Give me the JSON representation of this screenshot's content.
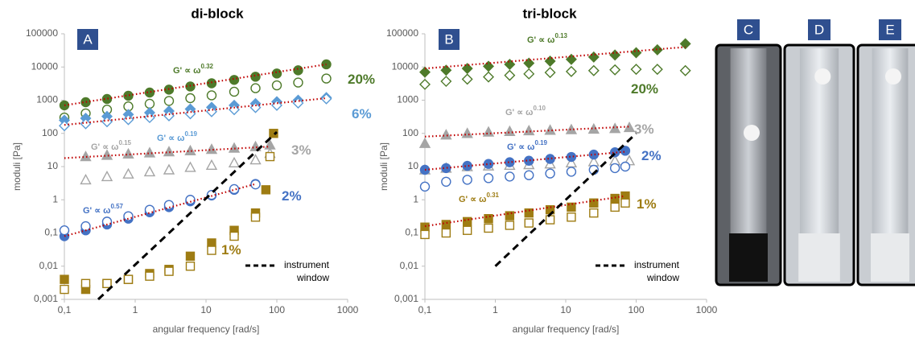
{
  "chart_data": [
    {
      "type": "scatter",
      "panel": "A",
      "title": "di-block",
      "xlabel": "angular frequency [rad/s]",
      "ylabel": "moduli [Pa]",
      "xscale": "log",
      "yscale": "log",
      "grid": false,
      "xlim": [
        0.1,
        1000
      ],
      "ylim": [
        0.001,
        100000
      ],
      "xticks": [
        {
          "value": 0.1,
          "label": "0,1"
        },
        1,
        10,
        100,
        1000
      ],
      "yticks": [
        {
          "value": 0.001,
          "label": "0,001"
        },
        {
          "value": 0.01,
          "label": "0,01"
        },
        {
          "value": 0.1,
          "label": "0,1"
        },
        1,
        10,
        100,
        1000,
        10000,
        100000
      ],
      "series": [
        {
          "color": "#4e7a2a",
          "marker": "circle",
          "filled": true,
          "x": [
            0.1,
            0.2,
            0.4,
            0.8,
            1.6,
            3,
            6,
            12,
            25,
            50,
            100,
            200,
            500
          ],
          "values": [
            700,
            870,
            1090,
            1360,
            1700,
            2080,
            2590,
            3230,
            4090,
            5100,
            6370,
            7940,
            12000
          ]
        },
        {
          "color": "#4e7a2a",
          "marker": "circle",
          "filled": false,
          "x": [
            0.1,
            0.2,
            0.4,
            0.8,
            1.6,
            3,
            6,
            12,
            25,
            50,
            100,
            200,
            500
          ],
          "values": [
            300,
            400,
            520,
            650,
            780,
            950,
            1150,
            1400,
            1800,
            2300,
            2800,
            3400,
            4500
          ]
        },
        {
          "color": "#5b9bd5",
          "marker": "diamond",
          "filled": true,
          "x": [
            0.1,
            0.2,
            0.4,
            0.8,
            1.6,
            3,
            6,
            12,
            25,
            50,
            100,
            200,
            500
          ],
          "values": [
            250,
            285,
            325,
            370,
            420,
            470,
            540,
            610,
            700,
            790,
            900,
            1000,
            1200
          ]
        },
        {
          "color": "#5b9bd5",
          "marker": "diamond",
          "filled": false,
          "x": [
            0.1,
            0.2,
            0.4,
            0.8,
            1.6,
            3,
            6,
            12,
            25,
            50,
            100,
            200,
            500
          ],
          "values": [
            170,
            195,
            225,
            260,
            300,
            340,
            390,
            450,
            520,
            600,
            700,
            820,
            1100
          ]
        },
        {
          "color": "#a5a5a5",
          "marker": "triangle",
          "filled": true,
          "x": [
            0.2,
            0.4,
            0.8,
            1.6,
            3,
            6,
            12,
            25,
            50,
            80
          ],
          "values": [
            20,
            22,
            24,
            26,
            28,
            30,
            33,
            36,
            40,
            45
          ]
        },
        {
          "color": "#a5a5a5",
          "marker": "triangle",
          "filled": false,
          "x": [
            0.2,
            0.4,
            0.8,
            1.6,
            3,
            6,
            12,
            25,
            50,
            80
          ],
          "values": [
            4,
            5,
            6,
            7,
            8,
            9.5,
            11,
            13,
            16,
            25
          ]
        },
        {
          "color": "#4472c4",
          "marker": "circle",
          "filled": true,
          "x": [
            0.1,
            0.2,
            0.4,
            0.8,
            1.6,
            3,
            6,
            12,
            25,
            50
          ],
          "values": [
            0.08,
            0.12,
            0.18,
            0.27,
            0.42,
            0.6,
            0.9,
            1.35,
            2.0,
            3.0
          ]
        },
        {
          "color": "#4472c4",
          "marker": "circle",
          "filled": false,
          "x": [
            0.1,
            0.2,
            0.4,
            0.8,
            1.6,
            3,
            6,
            12,
            25,
            50
          ],
          "values": [
            0.12,
            0.16,
            0.22,
            0.32,
            0.5,
            0.7,
            1.0,
            1.4,
            2.1,
            2.9
          ]
        },
        {
          "color": "#9e7c13",
          "marker": "square",
          "filled": true,
          "x": [
            0.1,
            0.2,
            0.4,
            0.8,
            1.6,
            3,
            6,
            12,
            25,
            50,
            70,
            90
          ],
          "values": [
            0.004,
            0.002,
            0.003,
            0.004,
            0.006,
            0.008,
            0.02,
            0.05,
            0.12,
            0.4,
            2,
            100
          ]
        },
        {
          "color": "#9e7c13",
          "marker": "square",
          "filled": false,
          "x": [
            0.1,
            0.2,
            0.4,
            0.8,
            1.6,
            3,
            6,
            12,
            25,
            50,
            80
          ],
          "values": [
            0.002,
            0.003,
            0.003,
            0.004,
            0.005,
            0.007,
            0.01,
            0.03,
            0.08,
            0.3,
            20
          ]
        },
        {
          "color": "#c00000",
          "style": "dotted",
          "x": [
            0.1,
            500
          ],
          "values": [
            700,
            12000
          ]
        },
        {
          "color": "#c00000",
          "style": "dotted",
          "x": [
            0.1,
            500
          ],
          "values": [
            180,
            1150
          ]
        },
        {
          "color": "#c00000",
          "style": "dotted",
          "x": [
            0.1,
            80
          ],
          "values": [
            18,
            40
          ]
        },
        {
          "color": "#c00000",
          "style": "dotted",
          "x": [
            0.1,
            50
          ],
          "values": [
            0.08,
            3
          ]
        },
        {
          "name": "instrument window",
          "color": "#000000",
          "style": "dashed",
          "x": [
            0.3,
            100
          ],
          "values": [
            0.001,
            110
          ]
        }
      ],
      "annotations": [
        {
          "text": "G' ∝ ω",
          "sup": "0.32",
          "color": "#4e7a2a"
        },
        {
          "text": "20%",
          "color": "#4e7a2a"
        },
        {
          "text": "6%",
          "color": "#5b9bd5"
        },
        {
          "text": "G' ∝ ω",
          "sup": "0.19",
          "color": "#5b9bd5"
        },
        {
          "text": "G' ∝ ω",
          "sup": "0.15",
          "color": "#a5a5a5"
        },
        {
          "text": "3%",
          "color": "#a5a5a5"
        },
        {
          "text": "G' ∝ ω",
          "sup": "0.57",
          "color": "#4472c4"
        },
        {
          "text": "2%",
          "color": "#4472c4"
        },
        {
          "text": "1%",
          "color": "#9e7c13"
        }
      ]
    },
    {
      "type": "scatter",
      "panel": "B",
      "title": "tri-block",
      "xlabel": "angular frequency [rad/s]",
      "ylabel": "moduli [Pa]",
      "xscale": "log",
      "yscale": "log",
      "grid": false,
      "xlim": [
        0.1,
        1000
      ],
      "ylim": [
        0.001,
        100000
      ],
      "xticks": [
        {
          "value": 0.1,
          "label": "0,1"
        },
        1,
        10,
        100,
        1000
      ],
      "yticks": [
        {
          "value": 0.001,
          "label": "0,001"
        },
        {
          "value": 0.01,
          "label": "0,01"
        },
        {
          "value": 0.1,
          "label": "0,1"
        },
        1,
        10,
        100,
        1000,
        10000,
        100000
      ],
      "series": [
        {
          "color": "#4e7a2a",
          "marker": "diamond",
          "filled": true,
          "x": [
            0.1,
            0.2,
            0.4,
            0.8,
            1.6,
            3,
            6,
            12,
            25,
            50,
            100,
            200,
            500
          ],
          "values": [
            7000,
            8000,
            9000,
            10500,
            12000,
            13000,
            15000,
            17000,
            20000,
            23000,
            27000,
            33000,
            50000
          ]
        },
        {
          "color": "#4e7a2a",
          "marker": "diamond",
          "filled": false,
          "x": [
            0.1,
            0.2,
            0.4,
            0.8,
            1.6,
            3,
            6,
            12,
            25,
            50,
            100,
            200,
            500
          ],
          "values": [
            3000,
            3700,
            4300,
            5000,
            5600,
            6200,
            6800,
            7300,
            7800,
            8200,
            8500,
            8500,
            7800
          ]
        },
        {
          "color": "#a5a5a5",
          "marker": "triangle",
          "filled": true,
          "x": [
            0.1,
            0.2,
            0.4,
            0.8,
            1.6,
            3,
            6,
            12,
            25,
            50,
            80
          ],
          "values": [
            50,
            90,
            100,
            110,
            115,
            120,
            125,
            130,
            135,
            140,
            150
          ]
        },
        {
          "color": "#a5a5a5",
          "marker": "triangle",
          "filled": false,
          "x": [
            0.1,
            0.2,
            0.4,
            0.8,
            1.6,
            3,
            6,
            12,
            25,
            50,
            80
          ],
          "values": [
            8,
            9,
            10,
            10.5,
            11,
            11.5,
            12,
            13,
            14,
            15,
            15
          ]
        },
        {
          "color": "#4472c4",
          "marker": "circle",
          "filled": true,
          "x": [
            0.1,
            0.2,
            0.4,
            0.8,
            1.6,
            3,
            6,
            12,
            25,
            50,
            70
          ],
          "values": [
            8,
            9,
            10.5,
            12,
            13.5,
            15,
            17,
            19.5,
            23,
            27,
            30
          ]
        },
        {
          "color": "#4472c4",
          "marker": "circle",
          "filled": false,
          "x": [
            0.1,
            0.2,
            0.4,
            0.8,
            1.6,
            3,
            6,
            12,
            25,
            50,
            70
          ],
          "values": [
            2.5,
            3.5,
            4,
            4.5,
            5,
            5.5,
            6.2,
            7,
            8,
            9,
            10
          ]
        },
        {
          "color": "#9e7c13",
          "marker": "square",
          "filled": true,
          "x": [
            0.1,
            0.2,
            0.4,
            0.8,
            1.6,
            3,
            6,
            12,
            25,
            50,
            70
          ],
          "values": [
            0.15,
            0.18,
            0.22,
            0.27,
            0.33,
            0.4,
            0.5,
            0.6,
            0.8,
            1.1,
            1.3
          ]
        },
        {
          "color": "#9e7c13",
          "marker": "square",
          "filled": false,
          "x": [
            0.1,
            0.2,
            0.4,
            0.8,
            1.6,
            3,
            6,
            12,
            25,
            50,
            70
          ],
          "values": [
            0.09,
            0.1,
            0.12,
            0.14,
            0.17,
            0.2,
            0.25,
            0.3,
            0.4,
            0.6,
            0.8
          ]
        },
        {
          "color": "#c00000",
          "style": "dotted",
          "x": [
            0.1,
            500
          ],
          "values": [
            9000,
            40000
          ]
        },
        {
          "color": "#c00000",
          "style": "dotted",
          "x": [
            0.1,
            80
          ],
          "values": [
            80,
            160
          ]
        },
        {
          "color": "#c00000",
          "style": "dotted",
          "x": [
            0.1,
            70
          ],
          "values": [
            8,
            28
          ]
        },
        {
          "color": "#c00000",
          "style": "dotted",
          "x": [
            0.1,
            70
          ],
          "values": [
            0.16,
            1.3
          ]
        },
        {
          "name": "instrument window",
          "color": "#000000",
          "style": "dashed",
          "x": [
            1,
            100
          ],
          "values": [
            0.01,
            100
          ]
        }
      ],
      "annotations": [
        {
          "text": "G' ∝ ω",
          "sup": "0.13",
          "color": "#4e7a2a"
        },
        {
          "text": "20%",
          "color": "#4e7a2a"
        },
        {
          "text": "G' ∝ ω",
          "sup": "0.10",
          "color": "#a5a5a5"
        },
        {
          "text": "3%",
          "color": "#a5a5a5"
        },
        {
          "text": "G' ∝ ω",
          "sup": "0.19",
          "color": "#4472c4"
        },
        {
          "text": "2%",
          "color": "#4472c4"
        },
        {
          "text": "G' ∝ ω",
          "sup": "0.31",
          "color": "#9e7c13"
        },
        {
          "text": "1%",
          "color": "#9e7c13"
        }
      ]
    }
  ],
  "photos": [
    "C",
    "D",
    "E"
  ]
}
